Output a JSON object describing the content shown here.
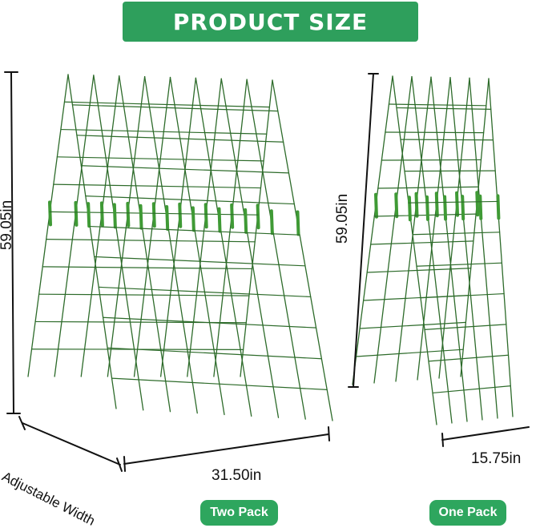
{
  "title": "PRODUCT SIZE",
  "colors": {
    "banner": "#2e9f5c",
    "wire": "#2d6b2a",
    "clip": "#3f9a35",
    "pill": "#2ea65e"
  },
  "two_pack": {
    "height_label": "59.05in",
    "width_label": "31.50in",
    "adjustable_label": "Adjustable Width",
    "badge": "Two Pack"
  },
  "one_pack": {
    "height_label": "59.05in",
    "width_label": "15.75in",
    "badge": "One Pack"
  }
}
